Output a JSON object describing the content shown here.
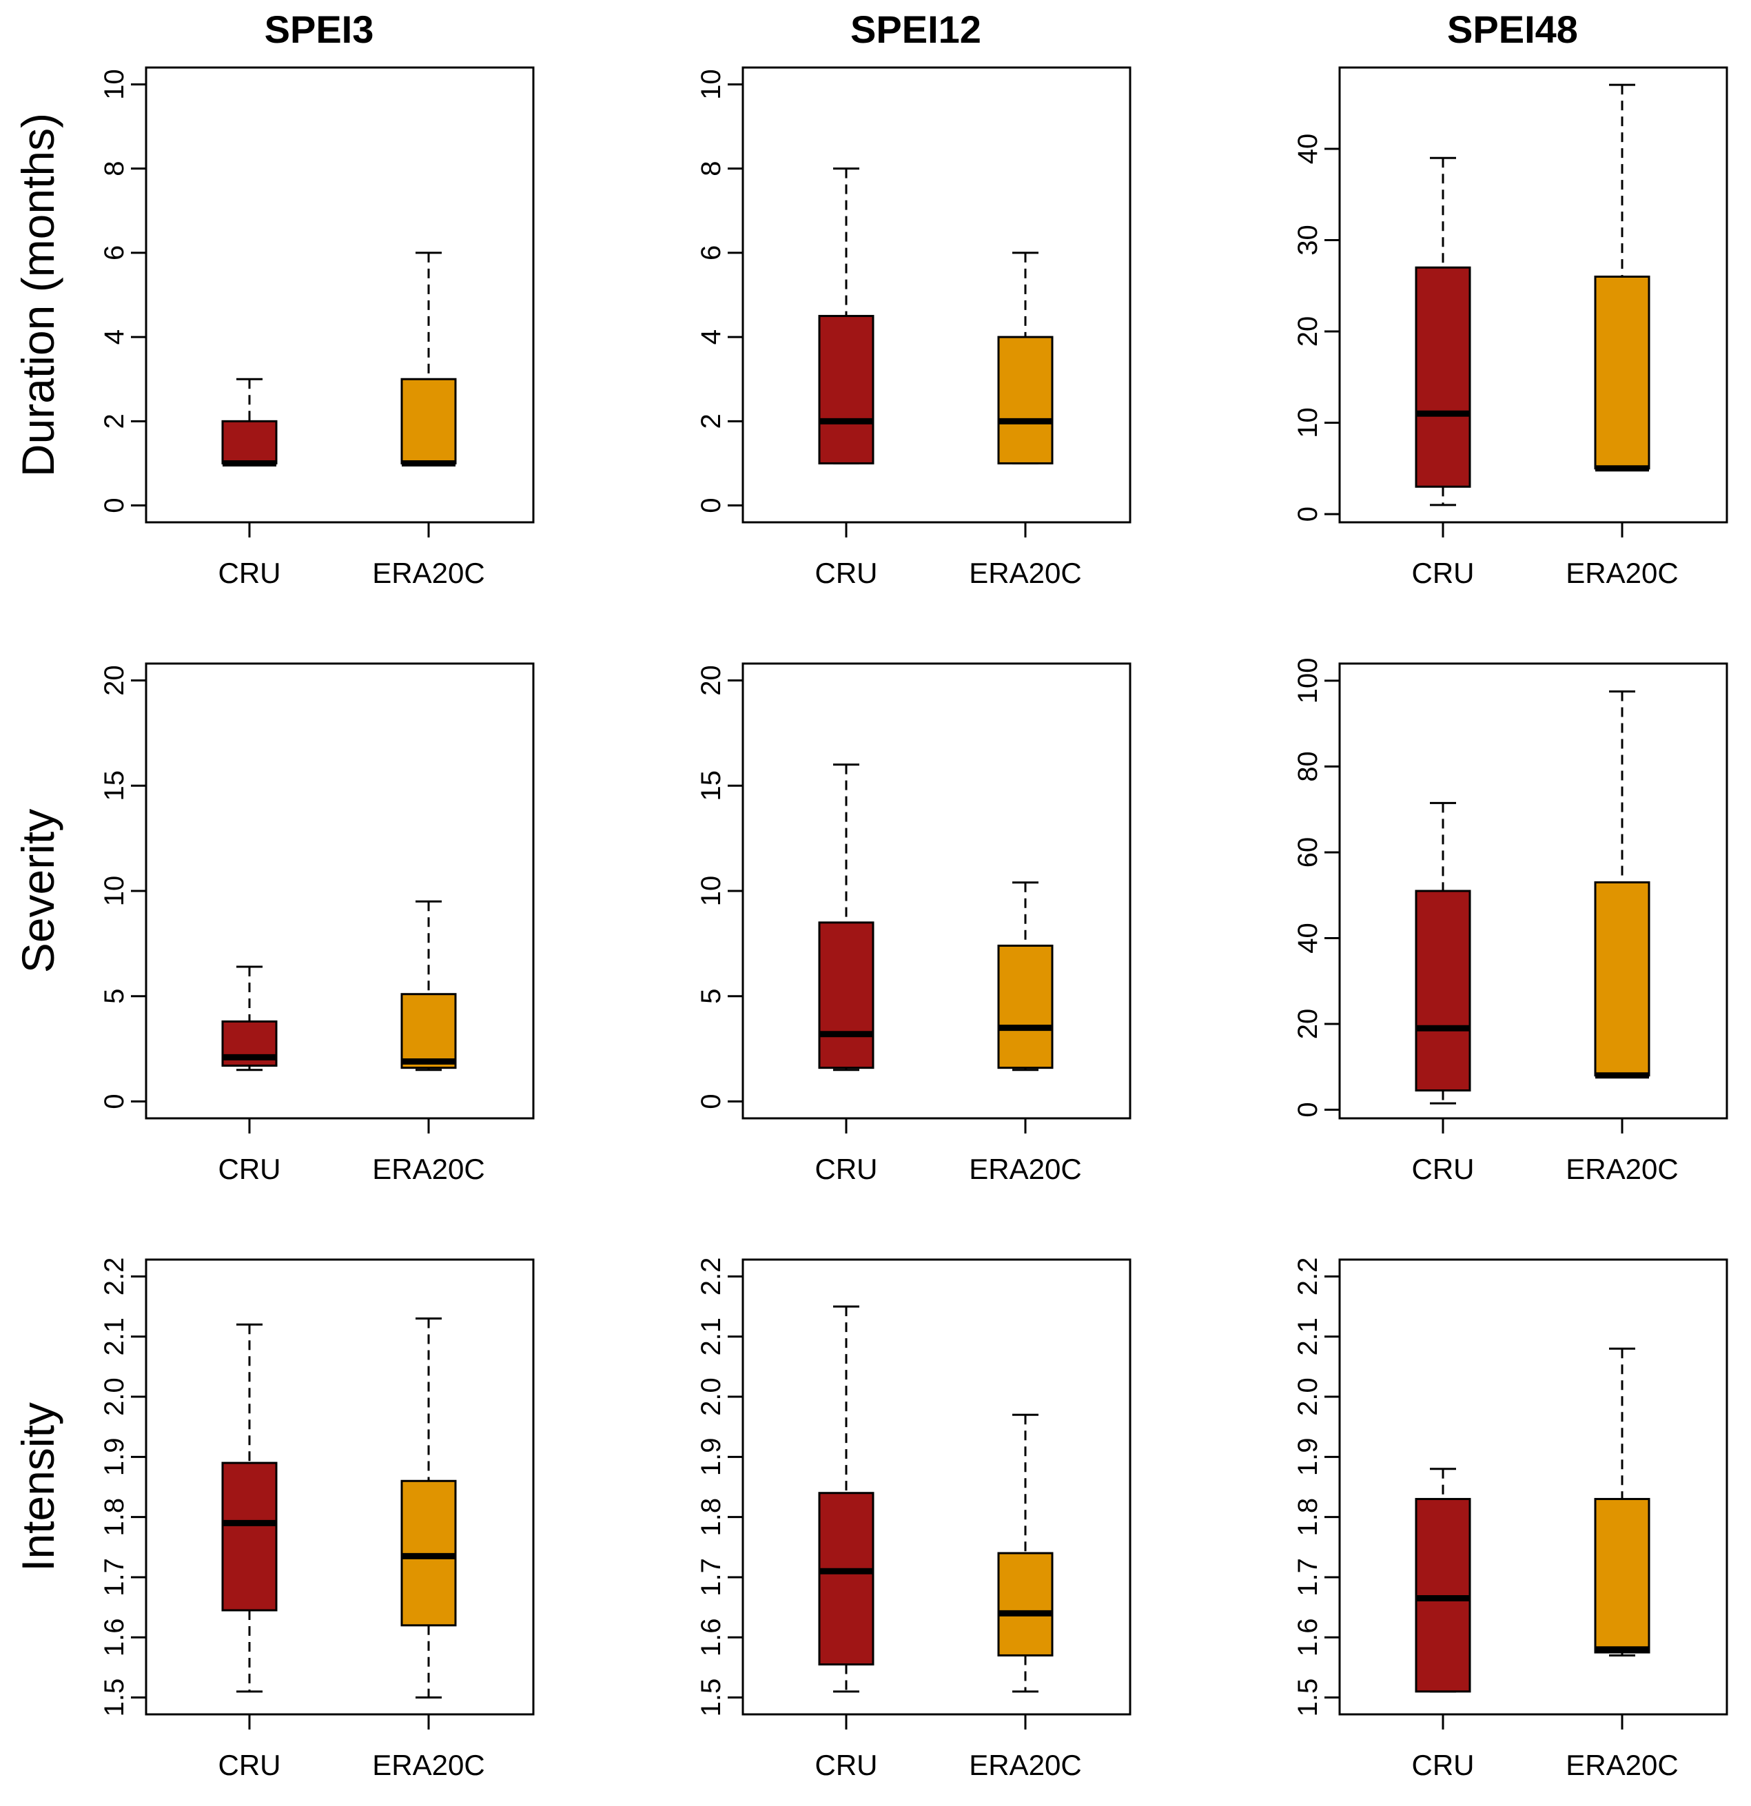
{
  "colors": {
    "cru": "#A01515",
    "era20c": "#E09400"
  },
  "columns": [
    "SPEI3",
    "SPEI12",
    "SPEI48"
  ],
  "rows": [
    "Duration (months)",
    "Severity",
    "Intensity"
  ],
  "chart_data": [
    {
      "type": "box",
      "title": "SPEI3",
      "ylabel": "Duration (months)",
      "ylim": [
        -0.4,
        10.4
      ],
      "yticks": [
        "0",
        "2",
        "4",
        "6",
        "8",
        "10"
      ],
      "categories": [
        "CRU",
        "ERA20C"
      ],
      "boxes": [
        {
          "name": "CRU",
          "whisker_low": 1,
          "q1": 1,
          "median": 1,
          "q3": 2,
          "whisker_high": 3
        },
        {
          "name": "ERA20C",
          "whisker_low": 1,
          "q1": 1,
          "median": 1,
          "q3": 3,
          "whisker_high": 6
        }
      ]
    },
    {
      "type": "box",
      "title": "SPEI12",
      "ylabel": "",
      "ylim": [
        -0.4,
        10.4
      ],
      "yticks": [
        "0",
        "2",
        "4",
        "6",
        "8",
        "10"
      ],
      "categories": [
        "CRU",
        "ERA20C"
      ],
      "boxes": [
        {
          "name": "CRU",
          "whisker_low": 1,
          "q1": 1,
          "median": 2,
          "q3": 4.5,
          "whisker_high": 8
        },
        {
          "name": "ERA20C",
          "whisker_low": 1,
          "q1": 1,
          "median": 2,
          "q3": 4,
          "whisker_high": 6
        }
      ]
    },
    {
      "type": "box",
      "title": "SPEI48",
      "ylabel": "",
      "ylim": [
        -0.9,
        48.9
      ],
      "yticks": [
        "0",
        "10",
        "20",
        "30",
        "40"
      ],
      "categories": [
        "CRU",
        "ERA20C"
      ],
      "boxes": [
        {
          "name": "CRU",
          "whisker_low": 1,
          "q1": 3,
          "median": 11,
          "q3": 27,
          "whisker_high": 39
        },
        {
          "name": "ERA20C",
          "whisker_low": 5,
          "q1": 5,
          "median": 5,
          "q3": 26,
          "whisker_high": 47
        }
      ]
    },
    {
      "type": "box",
      "title": "",
      "ylabel": "Severity",
      "ylim": [
        -0.8,
        20.8
      ],
      "yticks": [
        "0",
        "5",
        "10",
        "15",
        "20"
      ],
      "categories": [
        "CRU",
        "ERA20C"
      ],
      "boxes": [
        {
          "name": "CRU",
          "whisker_low": 1.5,
          "q1": 1.7,
          "median": 2.1,
          "q3": 3.8,
          "whisker_high": 6.4
        },
        {
          "name": "ERA20C",
          "whisker_low": 1.5,
          "q1": 1.6,
          "median": 1.9,
          "q3": 5.1,
          "whisker_high": 9.5
        }
      ]
    },
    {
      "type": "box",
      "title": "",
      "ylabel": "",
      "ylim": [
        -0.8,
        20.8
      ],
      "yticks": [
        "0",
        "5",
        "10",
        "15",
        "20"
      ],
      "categories": [
        "CRU",
        "ERA20C"
      ],
      "boxes": [
        {
          "name": "CRU",
          "whisker_low": 1.5,
          "q1": 1.6,
          "median": 3.2,
          "q3": 8.5,
          "whisker_high": 16
        },
        {
          "name": "ERA20C",
          "whisker_low": 1.5,
          "q1": 1.6,
          "median": 3.5,
          "q3": 7.4,
          "whisker_high": 10.4
        }
      ]
    },
    {
      "type": "box",
      "title": "",
      "ylabel": "",
      "ylim": [
        -2,
        104
      ],
      "yticks": [
        "0",
        "20",
        "40",
        "60",
        "80",
        "100"
      ],
      "categories": [
        "CRU",
        "ERA20C"
      ],
      "boxes": [
        {
          "name": "CRU",
          "whisker_low": 1.5,
          "q1": 4.5,
          "median": 19,
          "q3": 51,
          "whisker_high": 71.5
        },
        {
          "name": "ERA20C",
          "whisker_low": 8,
          "q1": 8,
          "median": 8,
          "q3": 53,
          "whisker_high": 97.5
        }
      ]
    },
    {
      "type": "box",
      "title": "",
      "ylabel": "Intensity",
      "ylim": [
        1.472,
        2.228
      ],
      "yticks": [
        "1.5",
        "1.6",
        "1.7",
        "1.8",
        "1.9",
        "2.0",
        "2.1",
        "2.2"
      ],
      "categories": [
        "CRU",
        "ERA20C"
      ],
      "boxes": [
        {
          "name": "CRU",
          "whisker_low": 1.51,
          "q1": 1.645,
          "median": 1.79,
          "q3": 1.89,
          "whisker_high": 2.12
        },
        {
          "name": "ERA20C",
          "whisker_low": 1.5,
          "q1": 1.62,
          "median": 1.735,
          "q3": 1.86,
          "whisker_high": 2.13
        }
      ]
    },
    {
      "type": "box",
      "title": "",
      "ylabel": "",
      "ylim": [
        1.472,
        2.228
      ],
      "yticks": [
        "1.5",
        "1.6",
        "1.7",
        "1.8",
        "1.9",
        "2.0",
        "2.1",
        "2.2"
      ],
      "categories": [
        "CRU",
        "ERA20C"
      ],
      "boxes": [
        {
          "name": "CRU",
          "whisker_low": 1.51,
          "q1": 1.555,
          "median": 1.71,
          "q3": 1.84,
          "whisker_high": 2.15
        },
        {
          "name": "ERA20C",
          "whisker_low": 1.51,
          "q1": 1.57,
          "median": 1.64,
          "q3": 1.74,
          "whisker_high": 1.97
        }
      ]
    },
    {
      "type": "box",
      "title": "",
      "ylabel": "",
      "ylim": [
        1.472,
        2.228
      ],
      "yticks": [
        "1.5",
        "1.6",
        "1.7",
        "1.8",
        "1.9",
        "2.0",
        "2.1",
        "2.2"
      ],
      "categories": [
        "CRU",
        "ERA20C"
      ],
      "boxes": [
        {
          "name": "CRU",
          "whisker_low": 1.51,
          "q1": 1.51,
          "median": 1.665,
          "q3": 1.83,
          "whisker_high": 1.88
        },
        {
          "name": "ERA20C",
          "whisker_low": 1.57,
          "q1": 1.575,
          "median": 1.58,
          "q3": 1.83,
          "whisker_high": 2.08
        }
      ]
    }
  ]
}
